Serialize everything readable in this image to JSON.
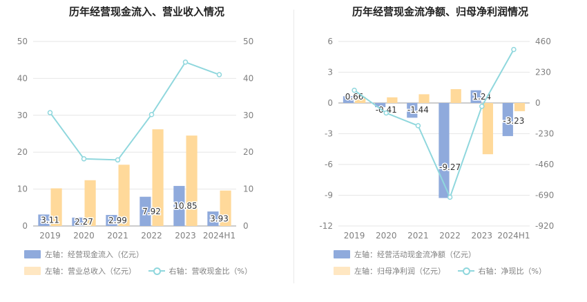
{
  "colors": {
    "bar_primary": "#8faadc",
    "bar_secondary": "#ffd99a",
    "line": "#8fd7dd",
    "axis_text": "#7f7f7f",
    "grid": "#e6e6e6"
  },
  "charts": [
    {
      "title": "历年经营现金流入、营业收入情况",
      "legend": [
        {
          "text": "左轴：经营现金流入（亿元）",
          "icon": "bar-swatch"
        },
        {
          "text": "左轴：营业总收入（亿元）",
          "icon": "bar-swatch"
        },
        {
          "text": "右轴：营收现金比（%）",
          "icon": "line-marker"
        }
      ]
    },
    {
      "title": "历年经营现金流净额、归母净利润情况",
      "legend": [
        {
          "text": "左轴：经营活动现金流净额（亿元）",
          "icon": "bar-swatch"
        },
        {
          "text": "左轴：归母净利润（亿元）",
          "icon": "bar-swatch"
        },
        {
          "text": "右轴：净现比（%）",
          "icon": "line-marker"
        }
      ]
    }
  ],
  "chart_data": [
    {
      "type": "bar",
      "title": "历年经营现金流入、营业收入情况",
      "categories": [
        "2019",
        "2020",
        "2021",
        "2022",
        "2023",
        "2024H1"
      ],
      "y_left": {
        "ticks": [
          0,
          10,
          20,
          30,
          40,
          50
        ],
        "range": [
          0,
          50
        ]
      },
      "y_right": {
        "ticks": [
          0,
          10,
          20,
          30,
          40,
          50
        ],
        "range": [
          0,
          50
        ]
      },
      "series": [
        {
          "name": "经营现金流入",
          "axis": "left",
          "type": "bar",
          "values": [
            3.11,
            2.27,
            2.99,
            7.92,
            10.85,
            3.93
          ],
          "labels": [
            "3.11",
            "2.27",
            "2.99",
            "7.92",
            "10.85",
            "3.93"
          ]
        },
        {
          "name": "营业总收入",
          "axis": "left",
          "type": "bar",
          "values": [
            10.2,
            12.4,
            16.6,
            26.2,
            24.5,
            9.6
          ]
        },
        {
          "name": "营收现金比",
          "axis": "right",
          "type": "line",
          "values": [
            30.7,
            18.2,
            17.9,
            30.2,
            44.4,
            41.0
          ]
        }
      ],
      "grid": true
    },
    {
      "type": "bar",
      "title": "历年经营现金流净额、归母净利润情况",
      "categories": [
        "2019",
        "2020",
        "2021",
        "2022",
        "2023",
        "2024H1"
      ],
      "y_left": {
        "ticks": [
          -12,
          -9,
          -6,
          -3,
          0,
          3,
          6
        ],
        "range": [
          -12,
          6
        ]
      },
      "y_right": {
        "ticks": [
          -920,
          -690,
          -460,
          -230,
          0,
          230,
          460
        ],
        "range": [
          -920,
          460
        ]
      },
      "series": [
        {
          "name": "经营活动现金流净额",
          "axis": "left",
          "type": "bar",
          "values": [
            0.66,
            -0.41,
            -1.44,
            -9.27,
            1.24,
            -3.23
          ],
          "labels": [
            "0.66",
            "-0.41",
            "-1.44",
            "-9.27",
            "1.24",
            "-3.23"
          ]
        },
        {
          "name": "归母净利润",
          "axis": "left",
          "type": "bar",
          "values": [
            0.6,
            0.55,
            0.85,
            1.35,
            -5.0,
            -0.8
          ]
        },
        {
          "name": "净现比",
          "axis": "right",
          "type": "line",
          "values": [
            95,
            -75,
            -170,
            -705,
            -25,
            400
          ]
        }
      ],
      "grid": true
    }
  ]
}
